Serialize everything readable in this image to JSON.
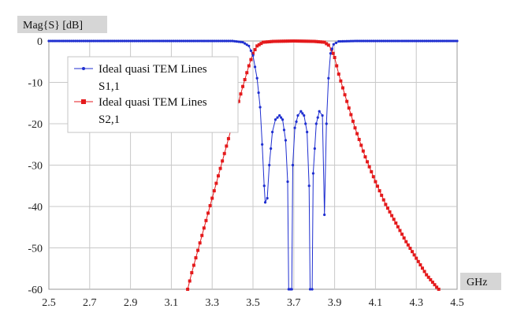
{
  "chart_data": {
    "type": "line",
    "ylabel": "Mag{S} [dB]",
    "xlabel": "GHz",
    "xlim": [
      2.5,
      4.5
    ],
    "ylim": [
      -60,
      0
    ],
    "x_ticks": [
      "2.5",
      "2.7",
      "2.9",
      "3.1",
      "3.3",
      "3.5",
      "3.7",
      "3.9",
      "4.1",
      "4.3",
      "4.5"
    ],
    "y_ticks": [
      "0",
      "-10",
      "-20",
      "-30",
      "-40",
      "-50",
      "-60"
    ],
    "grid": true,
    "legend_position": "top-left",
    "series": [
      {
        "name_line1": "Ideal quasi TEM Lines",
        "name_line2": "S1,1",
        "color": "#1f2fd0",
        "marker": "dot",
        "points": [
          [
            2.5,
            0
          ],
          [
            2.7,
            0
          ],
          [
            2.9,
            0
          ],
          [
            3.1,
            0
          ],
          [
            3.3,
            0
          ],
          [
            3.4,
            0
          ],
          [
            3.45,
            -0.3
          ],
          [
            3.48,
            -1.2
          ],
          [
            3.5,
            -3.5
          ],
          [
            3.52,
            -9
          ],
          [
            3.535,
            -16
          ],
          [
            3.545,
            -25
          ],
          [
            3.555,
            -35
          ],
          [
            3.56,
            -39
          ],
          [
            3.57,
            -38
          ],
          [
            3.58,
            -30
          ],
          [
            3.595,
            -22
          ],
          [
            3.61,
            -19
          ],
          [
            3.63,
            -18
          ],
          [
            3.645,
            -19
          ],
          [
            3.66,
            -24
          ],
          [
            3.67,
            -34
          ],
          [
            3.675,
            -60
          ],
          [
            3.69,
            -60
          ],
          [
            3.695,
            -30
          ],
          [
            3.705,
            -21
          ],
          [
            3.72,
            -18
          ],
          [
            3.735,
            -17
          ],
          [
            3.75,
            -18
          ],
          [
            3.765,
            -22
          ],
          [
            3.775,
            -35
          ],
          [
            3.78,
            -60
          ],
          [
            3.79,
            -60
          ],
          [
            3.795,
            -32
          ],
          [
            3.81,
            -20
          ],
          [
            3.825,
            -17
          ],
          [
            3.84,
            -18
          ],
          [
            3.85,
            -42
          ],
          [
            3.86,
            -20
          ],
          [
            3.87,
            -9
          ],
          [
            3.88,
            -3
          ],
          [
            3.895,
            -0.8
          ],
          [
            3.92,
            -0.1
          ],
          [
            4.0,
            0
          ],
          [
            4.1,
            0
          ],
          [
            4.2,
            0
          ],
          [
            4.3,
            0
          ],
          [
            4.4,
            0
          ],
          [
            4.5,
            0
          ]
        ]
      },
      {
        "name_line1": "Ideal quasi TEM Lines",
        "name_line2": "S2,1",
        "color": "#e41a1c",
        "marker": "square",
        "points": [
          [
            3.18,
            -60
          ],
          [
            3.2,
            -56
          ],
          [
            3.25,
            -47
          ],
          [
            3.3,
            -38
          ],
          [
            3.35,
            -29
          ],
          [
            3.4,
            -20
          ],
          [
            3.45,
            -11
          ],
          [
            3.48,
            -6
          ],
          [
            3.5,
            -3
          ],
          [
            3.52,
            -1.2
          ],
          [
            3.55,
            -0.3
          ],
          [
            3.6,
            -0.1
          ],
          [
            3.7,
            0
          ],
          [
            3.8,
            -0.1
          ],
          [
            3.85,
            -0.3
          ],
          [
            3.87,
            -1
          ],
          [
            3.885,
            -2
          ],
          [
            3.9,
            -4
          ],
          [
            3.92,
            -8
          ],
          [
            3.95,
            -13
          ],
          [
            4.0,
            -21
          ],
          [
            4.05,
            -28
          ],
          [
            4.1,
            -34
          ],
          [
            4.15,
            -39.5
          ],
          [
            4.2,
            -44
          ],
          [
            4.25,
            -48.5
          ],
          [
            4.3,
            -52.5
          ],
          [
            4.35,
            -56.5
          ],
          [
            4.4,
            -59.5
          ],
          [
            4.41,
            -60
          ]
        ]
      }
    ]
  }
}
